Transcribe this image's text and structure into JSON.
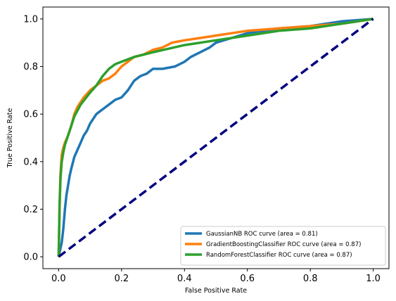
{
  "chart_data": {
    "type": "line",
    "title": "",
    "xlabel": "False Positive Rate",
    "ylabel": "True Positive Rate",
    "xlim": [
      -0.05,
      1.05
    ],
    "ylim": [
      -0.05,
      1.05
    ],
    "xticks": [
      0.0,
      0.2,
      0.4,
      0.6,
      0.8,
      1.0
    ],
    "yticks": [
      0.0,
      0.2,
      0.4,
      0.6,
      0.8,
      1.0
    ],
    "xtick_labels": [
      "0.0",
      "0.2",
      "0.4",
      "0.6",
      "0.8",
      "1.0"
    ],
    "ytick_labels": [
      "0.0",
      "0.2",
      "0.4",
      "0.6",
      "0.8",
      "1.0"
    ],
    "grid": false,
    "legend_position": "bottom-right",
    "series": [
      {
        "name": "GaussianNB ROC curve (area = 0.81)",
        "color": "#1f77b4",
        "style": "solid",
        "x": [
          0.0,
          0.005,
          0.01,
          0.015,
          0.02,
          0.025,
          0.03,
          0.035,
          0.04,
          0.05,
          0.06,
          0.07,
          0.08,
          0.09,
          0.1,
          0.11,
          0.12,
          0.14,
          0.16,
          0.18,
          0.2,
          0.22,
          0.24,
          0.26,
          0.28,
          0.3,
          0.33,
          0.37,
          0.4,
          0.42,
          0.45,
          0.48,
          0.5,
          0.55,
          0.6,
          0.65,
          0.7,
          0.8,
          0.85,
          0.9,
          0.95,
          1.0
        ],
        "y": [
          0.0,
          0.03,
          0.06,
          0.12,
          0.2,
          0.26,
          0.3,
          0.34,
          0.37,
          0.42,
          0.45,
          0.48,
          0.51,
          0.53,
          0.56,
          0.58,
          0.6,
          0.62,
          0.64,
          0.66,
          0.67,
          0.7,
          0.74,
          0.76,
          0.77,
          0.79,
          0.79,
          0.8,
          0.82,
          0.84,
          0.86,
          0.88,
          0.9,
          0.92,
          0.94,
          0.95,
          0.96,
          0.97,
          0.98,
          0.99,
          0.995,
          1.0
        ]
      },
      {
        "name": "GradientBoostingClassifier ROC curve (area = 0.87)",
        "color": "#ff7f0e",
        "style": "solid",
        "x": [
          0.0,
          0.003,
          0.006,
          0.01,
          0.015,
          0.02,
          0.03,
          0.04,
          0.05,
          0.06,
          0.08,
          0.1,
          0.12,
          0.14,
          0.16,
          0.18,
          0.2,
          0.22,
          0.24,
          0.27,
          0.3,
          0.33,
          0.36,
          0.4,
          0.45,
          0.5,
          0.55,
          0.6,
          0.7,
          0.8,
          0.9,
          1.0
        ],
        "y": [
          0.0,
          0.2,
          0.35,
          0.43,
          0.46,
          0.48,
          0.51,
          0.55,
          0.6,
          0.63,
          0.67,
          0.7,
          0.72,
          0.74,
          0.75,
          0.77,
          0.8,
          0.82,
          0.84,
          0.85,
          0.87,
          0.88,
          0.9,
          0.91,
          0.92,
          0.93,
          0.94,
          0.95,
          0.96,
          0.97,
          0.98,
          1.0
        ]
      },
      {
        "name": "RandomForestClassifier ROC curve (area = 0.87)",
        "color": "#2ca02c",
        "style": "solid",
        "x": [
          0.0,
          0.003,
          0.006,
          0.01,
          0.015,
          0.02,
          0.03,
          0.05,
          0.07,
          0.1,
          0.12,
          0.14,
          0.16,
          0.18,
          0.2,
          0.22,
          0.24,
          0.3,
          0.4,
          0.5,
          0.6,
          0.7,
          0.8,
          0.9,
          1.0
        ],
        "y": [
          0.0,
          0.22,
          0.33,
          0.4,
          0.44,
          0.47,
          0.51,
          0.59,
          0.64,
          0.69,
          0.72,
          0.76,
          0.79,
          0.81,
          0.82,
          0.83,
          0.84,
          0.86,
          0.89,
          0.91,
          0.93,
          0.95,
          0.96,
          0.98,
          1.0
        ]
      },
      {
        "name": "",
        "color": "#000080",
        "style": "dashed",
        "x": [
          0.0,
          1.0
        ],
        "y": [
          0.0,
          1.0
        ]
      }
    ]
  }
}
